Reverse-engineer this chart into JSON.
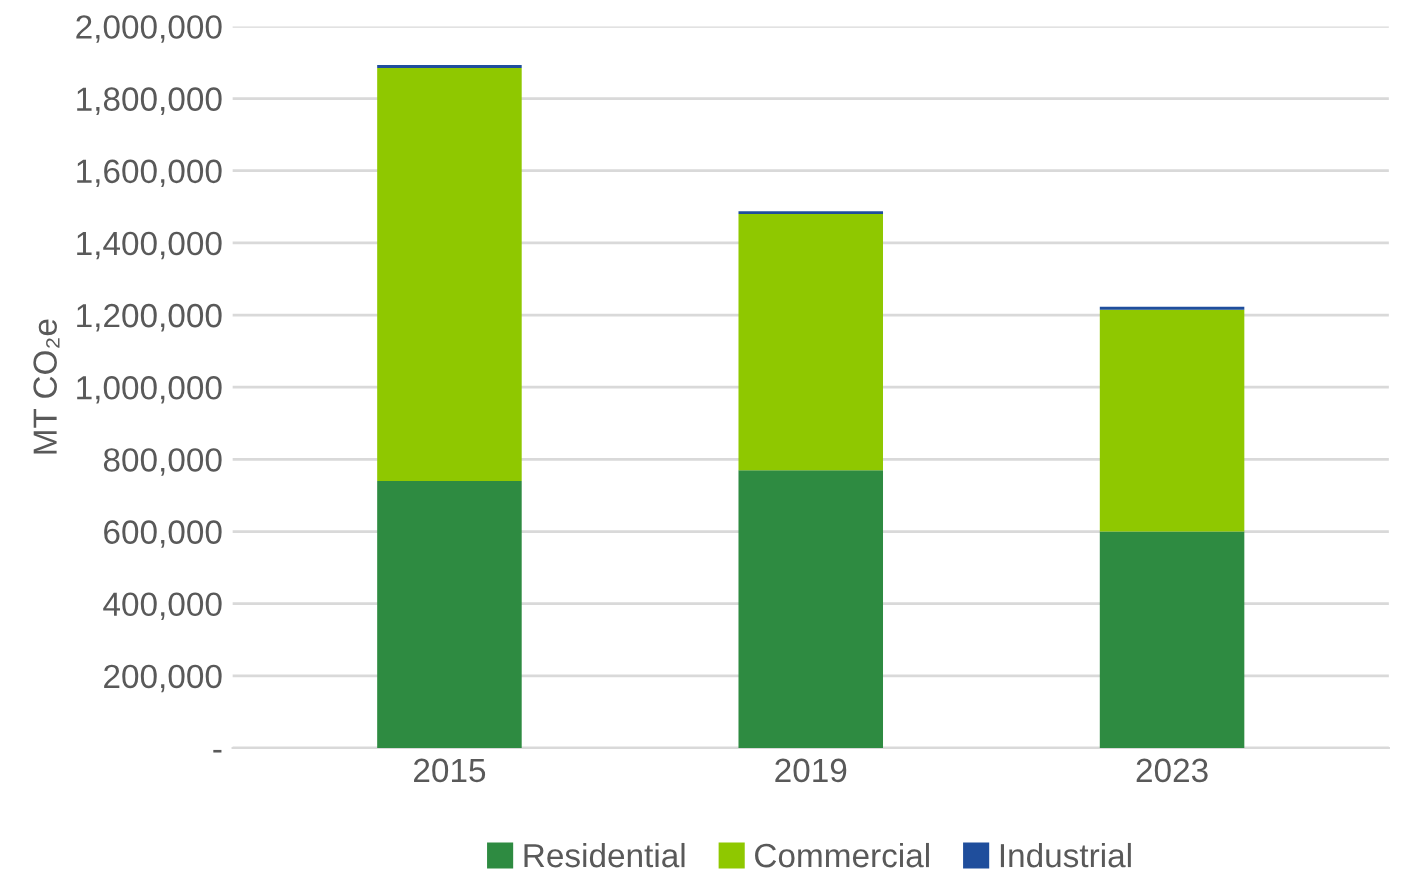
{
  "chart_data": {
    "type": "bar",
    "stacked": true,
    "ylabel": "MT CO₂e",
    "categories": [
      "2015",
      "2019",
      "2023"
    ],
    "series": [
      {
        "name": "Residential",
        "color": "#2e8b41",
        "values": [
          740000,
          770000,
          600000
        ]
      },
      {
        "name": "Commercial",
        "color": "#8fc800",
        "values": [
          1145000,
          710000,
          615000
        ]
      },
      {
        "name": "Industrial",
        "color": "#1f4e9c",
        "values": [
          8000,
          8000,
          8000
        ]
      }
    ],
    "ylim": [
      0,
      2000000
    ],
    "yticks": [
      {
        "value": 0,
        "label": "-"
      },
      {
        "value": 200000,
        "label": "200,000"
      },
      {
        "value": 400000,
        "label": "400,000"
      },
      {
        "value": 600000,
        "label": "600,000"
      },
      {
        "value": 800000,
        "label": "800,000"
      },
      {
        "value": 1000000,
        "label": "1,000,000"
      },
      {
        "value": 1200000,
        "label": "1,200,000"
      },
      {
        "value": 1400000,
        "label": "1,400,000"
      },
      {
        "value": 1600000,
        "label": "1,600,000"
      },
      {
        "value": 1800000,
        "label": "1,800,000"
      },
      {
        "value": 2000000,
        "label": "2,000,000"
      }
    ],
    "grid": "y",
    "legend": "bottom"
  }
}
